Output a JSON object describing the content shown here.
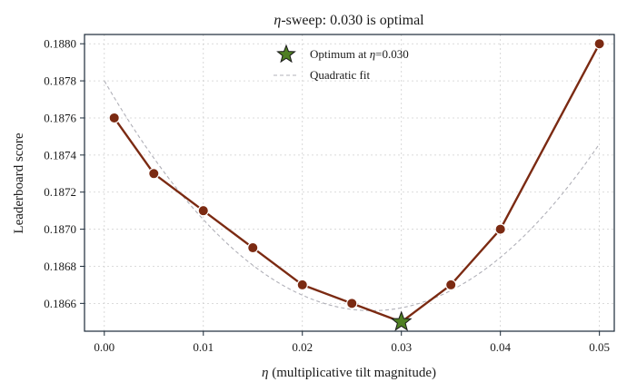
{
  "chart_data": {
    "type": "line",
    "title_prefix": "η",
    "title_rest": "-sweep: 0.030 is optimal",
    "xlabel_symbol": "η",
    "xlabel_rest": " (multiplicative tilt magnitude)",
    "ylabel": "Leaderboard score",
    "xlim": [
      -0.002,
      0.0515
    ],
    "ylim": [
      0.18645,
      0.18805
    ],
    "x_ticks": [
      0.0,
      0.01,
      0.02,
      0.03,
      0.04,
      0.05
    ],
    "x_tick_labels": [
      "0.00",
      "0.01",
      "0.02",
      "0.03",
      "0.04",
      "0.05"
    ],
    "y_ticks": [
      0.1866,
      0.1868,
      0.187,
      0.1872,
      0.1874,
      0.1876,
      0.1878,
      0.188
    ],
    "y_tick_labels": [
      "0.1866",
      "0.1868",
      "0.1870",
      "0.1872",
      "0.1874",
      "0.1876",
      "0.1878",
      "0.1880"
    ],
    "grid": true,
    "series": [
      {
        "x": [
          0.001,
          0.005,
          0.01,
          0.015,
          0.02,
          0.025,
          0.03,
          0.035,
          0.04,
          0.05
        ],
        "y": [
          0.1876,
          0.1873,
          0.1871,
          0.1869,
          0.1867,
          0.1866,
          0.1865,
          0.1867,
          0.187,
          0.188
        ],
        "color": "#7b2a12",
        "marker": "circle"
      }
    ],
    "fit": {
      "label": "Quadratic fit",
      "color": "#b0b0b8",
      "style": "dashed",
      "x_range": [
        0.0,
        0.05
      ],
      "coefficients": [
        0.1878,
        -0.0918,
        1.7
      ]
    },
    "optimum": {
      "x": 0.03,
      "y": 0.1865,
      "label_prefix": "Optimum at ",
      "label_symbol": "η",
      "label_suffix": "=0.030",
      "color": "#4f7f23"
    },
    "legend_position": "top-center"
  },
  "colors": {
    "frame": "#1b2a38",
    "background": "#ffffff"
  }
}
